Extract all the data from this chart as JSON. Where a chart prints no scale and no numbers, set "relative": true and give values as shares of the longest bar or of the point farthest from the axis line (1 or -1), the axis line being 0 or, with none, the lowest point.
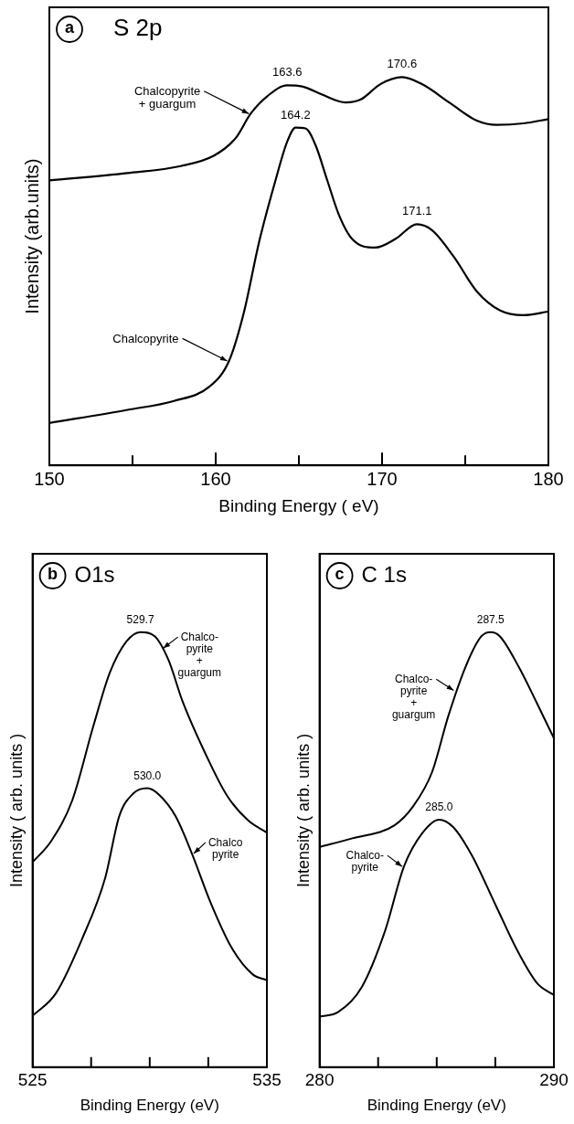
{
  "chart_data": [
    {
      "type": "line",
      "title": "S 2p",
      "xlabel": "Binding Energy ( eV)",
      "ylabel": "Intensity (arb.units)",
      "relative": true,
      "marker": "none",
      "xlim": [
        150,
        180
      ],
      "xticks": [
        150,
        {
          "value": 155,
          "label": null
        },
        160,
        {
          "value": 165,
          "label": null
        },
        170,
        {
          "value": 175,
          "label": null
        },
        180
      ],
      "series": [
        {
          "color": "#000000",
          "x": [
            150,
            154.7,
            157.9,
            159.9,
            161.2,
            162.1,
            163.1,
            164.3,
            165.2,
            166.4,
            167.8,
            168.7,
            169.9,
            171.2,
            172.4,
            174.1,
            175.7,
            176.9,
            178.5,
            180
          ],
          "values": [
            0.734,
            0.753,
            0.771,
            0.798,
            0.843,
            0.906,
            0.951,
            0.979,
            0.976,
            0.955,
            0.935,
            0.942,
            0.982,
            1.0,
            0.982,
            0.933,
            0.888,
            0.877,
            0.881,
            0.892
          ]
        },
        {
          "color": "#000000",
          "x": [
            150,
            154.7,
            157.5,
            159.6,
            160.8,
            161.7,
            162.6,
            163.6,
            164.3,
            164.8,
            165.4,
            166.0,
            166.7,
            167.4,
            168.2,
            169.6,
            170.8,
            172.1,
            173.0,
            174.3,
            175.7,
            177.1,
            178.5,
            180
          ],
          "values": [
            0.109,
            0.143,
            0.166,
            0.202,
            0.269,
            0.395,
            0.574,
            0.735,
            0.834,
            0.87,
            0.868,
            0.825,
            0.735,
            0.646,
            0.583,
            0.561,
            0.583,
            0.621,
            0.606,
            0.538,
            0.448,
            0.399,
            0.387,
            0.396
          ]
        }
      ],
      "annotations": [
        "a",
        {
          "text": "163.6",
          "x": 164.3,
          "y": 0.979
        },
        {
          "text": "170.6",
          "x": 171.2,
          "y": 1.0
        },
        {
          "text": "164.2",
          "x": 164.8,
          "y": 0.87
        },
        {
          "text": "171.1",
          "x": 172.1,
          "y": 0.621
        },
        {
          "text": "Chalcopyrite\n+ guargum",
          "x": 162.1,
          "y": 0.906
        },
        {
          "text": "Chalcopyrite",
          "x": 160.8,
          "y": 0.269
        }
      ]
    },
    {
      "type": "line",
      "title": "O1s",
      "xlabel": "Binding Energy (eV)",
      "ylabel": "Intensity ( arb. units )",
      "relative": true,
      "marker": "none",
      "xlim": [
        525,
        535
      ],
      "xticks": [
        525,
        {
          "value": 527.5,
          "label": null
        },
        {
          "value": 530,
          "label": null
        },
        {
          "value": 532.5,
          "label": null
        },
        535
      ],
      "series": [
        {
          "color": "#000000",
          "x": [
            525,
            525.8,
            526.7,
            527.6,
            528.3,
            529.0,
            529.6,
            530.2,
            530.8,
            531.4,
            532.4,
            533.3,
            534.2,
            535
          ],
          "values": [
            0.471,
            0.52,
            0.614,
            0.785,
            0.907,
            0.978,
            1.0,
            0.991,
            0.936,
            0.841,
            0.718,
            0.624,
            0.567,
            0.539
          ]
        },
        {
          "color": "#000000",
          "x": [
            525,
            526.0,
            527.1,
            528.1,
            528.7,
            529.3,
            529.9,
            530.4,
            531.1,
            531.8,
            532.6,
            533.5,
            534.4,
            535
          ],
          "values": [
            0.118,
            0.17,
            0.293,
            0.435,
            0.577,
            0.629,
            0.641,
            0.626,
            0.577,
            0.491,
            0.378,
            0.274,
            0.213,
            0.2
          ]
        }
      ],
      "annotations": [
        "b",
        {
          "text": "529.7",
          "x": 529.6,
          "y": 1.0
        },
        {
          "text": "530.0",
          "x": 529.9,
          "y": 0.641
        },
        {
          "text": "Chalco-\npyrite\n+\nguargum",
          "x": 530.5,
          "y": 0.963
        },
        {
          "text": "Chalco\npyrite",
          "x": 531.8,
          "y": 0.491
        }
      ]
    },
    {
      "type": "line",
      "title": "C 1s",
      "xlabel": "Binding Energy (eV)",
      "ylabel": "Intensity ( arb. units )",
      "relative": true,
      "marker": "none",
      "xlim": [
        280,
        290
      ],
      "xticks": [
        280,
        {
          "value": 282.5,
          "label": null
        },
        {
          "value": 285,
          "label": null
        },
        {
          "value": 287.5,
          "label": null
        },
        290
      ],
      "series": [
        {
          "color": "#000000",
          "x": [
            280,
            281.4,
            283.2,
            284.0,
            284.8,
            285.5,
            286.3,
            286.9,
            287.3,
            287.7,
            288.5,
            289.3,
            290
          ],
          "values": [
            0.506,
            0.526,
            0.556,
            0.6,
            0.678,
            0.808,
            0.929,
            0.99,
            1.0,
            0.99,
            0.92,
            0.834,
            0.756
          ]
        },
        {
          "color": "#000000",
          "x": [
            280,
            280.8,
            281.8,
            282.8,
            283.6,
            284.4,
            285.1,
            285.7,
            286.5,
            287.5,
            288.5,
            289.3,
            290
          ],
          "values": [
            0.116,
            0.127,
            0.184,
            0.314,
            0.461,
            0.539,
            0.569,
            0.552,
            0.487,
            0.374,
            0.262,
            0.192,
            0.166
          ]
        }
      ],
      "annotations": [
        "c",
        {
          "text": "287.5",
          "x": 287.3,
          "y": 1.0
        },
        {
          "text": "285.0",
          "x": 285.1,
          "y": 0.569
        },
        {
          "text": "Chalco-\npyrite\n+\nguargum",
          "x": 285.8,
          "y": 0.866
        },
        {
          "text": "Chalco-\npyrite",
          "x": 283.6,
          "y": 0.461
        }
      ]
    }
  ]
}
